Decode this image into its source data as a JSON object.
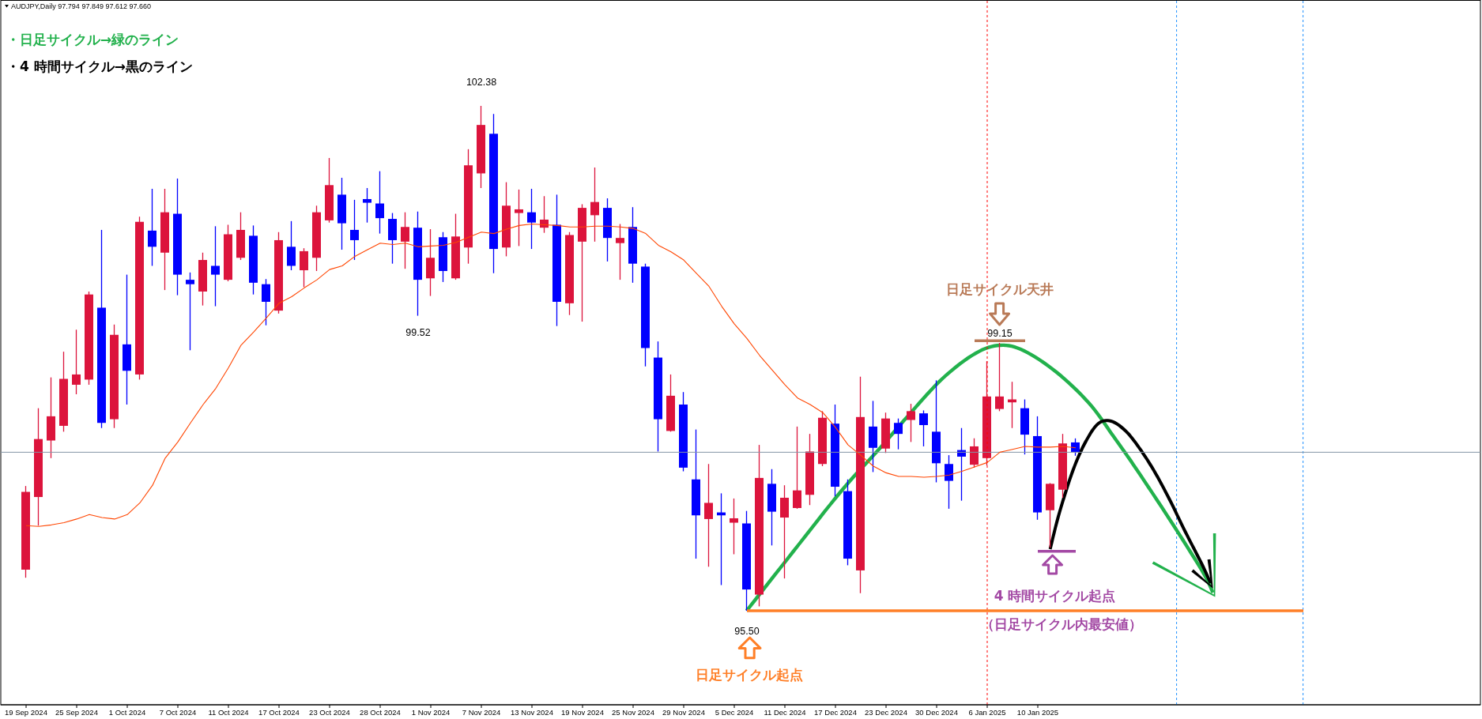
{
  "chart_data": {
    "type": "candlestick",
    "title": "AUDJPY,Daily 97.794 97.849 97.612 97.660",
    "categories": [
      "19 Sep 2024",
      null,
      null,
      null,
      "25 Sep 2024",
      null,
      null,
      null,
      "1 Oct 2024",
      null,
      null,
      null,
      "7 Oct 2024",
      null,
      null,
      null,
      "11 Oct 2024",
      null,
      null,
      null,
      "17 Oct 2024",
      null,
      null,
      null,
      "23 Oct 2024",
      null,
      null,
      null,
      "28 Oct 2024",
      null,
      null,
      null,
      "1 Nov 2024",
      null,
      null,
      null,
      "7 Nov 2024",
      null,
      null,
      null,
      "13 Nov 2024",
      null,
      null,
      null,
      "19 Nov 2024",
      null,
      null,
      null,
      "25 Nov 2024",
      null,
      null,
      null,
      "29 Nov 2024",
      null,
      null,
      null,
      "5 Dec 2024",
      null,
      null,
      null,
      "11 Dec 2024",
      null,
      null,
      null,
      "17 Dec 2024",
      null,
      null,
      null,
      "23 Dec 2024",
      null,
      null,
      null,
      "30 Dec 2024",
      null,
      null,
      null,
      "6 Jan 2025",
      null,
      null,
      null,
      "10 Jan 2025",
      null,
      null,
      null,
      null,
      null,
      null,
      null,
      null,
      null,
      null,
      null,
      null,
      null,
      null,
      null,
      null,
      null,
      null,
      null,
      null,
      null
    ],
    "ohlc": [
      [
        96.06,
        97.2,
        95.95,
        97.12
      ],
      [
        97.05,
        98.26,
        96.66,
        97.84
      ],
      [
        97.82,
        98.68,
        97.58,
        98.15
      ],
      [
        98.02,
        99.03,
        97.94,
        98.66
      ],
      [
        98.58,
        99.33,
        98.45,
        98.72
      ],
      [
        98.65,
        99.85,
        98.58,
        99.81
      ],
      [
        99.63,
        100.69,
        97.99,
        98.06
      ],
      [
        98.11,
        99.4,
        97.99,
        99.26
      ],
      [
        99.13,
        100.08,
        98.31,
        98.77
      ],
      [
        98.72,
        100.87,
        98.65,
        100.8
      ],
      [
        100.68,
        101.25,
        100.2,
        100.46
      ],
      [
        100.38,
        101.25,
        99.87,
        100.93
      ],
      [
        100.91,
        101.39,
        99.8,
        100.08
      ],
      [
        100.01,
        100.11,
        99.05,
        99.95
      ],
      [
        99.85,
        100.38,
        99.66,
        100.28
      ],
      [
        100.2,
        100.74,
        99.65,
        100.08
      ],
      [
        100.01,
        100.76,
        99.99,
        100.63
      ],
      [
        100.31,
        100.93,
        100.28,
        100.69
      ],
      [
        100.61,
        100.75,
        99.81,
        99.97
      ],
      [
        99.95,
        100.02,
        99.39,
        99.71
      ],
      [
        99.59,
        100.66,
        99.55,
        100.55
      ],
      [
        100.46,
        100.81,
        100.14,
        100.2
      ],
      [
        100.14,
        100.44,
        99.91,
        100.4
      ],
      [
        100.31,
        101.02,
        100.13,
        100.93
      ],
      [
        100.82,
        101.67,
        100.79,
        101.3
      ],
      [
        101.17,
        101.4,
        100.42,
        100.78
      ],
      [
        100.69,
        101.1,
        100.28,
        100.55
      ],
      [
        101.11,
        101.26,
        100.79,
        101.06
      ],
      [
        101.05,
        101.49,
        100.64,
        100.85
      ],
      [
        100.84,
        100.92,
        100.23,
        100.55
      ],
      [
        100.53,
        100.93,
        100.16,
        100.73
      ],
      [
        100.72,
        100.94,
        99.52,
        100.01
      ],
      [
        100.03,
        100.7,
        99.79,
        100.31
      ],
      [
        100.59,
        100.66,
        99.98,
        100.13
      ],
      [
        100.03,
        100.91,
        100.01,
        100.6
      ],
      [
        100.45,
        101.79,
        100.23,
        101.57
      ],
      [
        101.46,
        102.38,
        101.26,
        102.12
      ],
      [
        102.0,
        102.27,
        100.1,
        100.43
      ],
      [
        100.45,
        101.34,
        100.33,
        101.02
      ],
      [
        100.92,
        101.24,
        100.47,
        100.97
      ],
      [
        100.93,
        101.25,
        100.43,
        100.79
      ],
      [
        100.72,
        101.15,
        100.65,
        100.83
      ],
      [
        100.76,
        101.17,
        99.38,
        99.71
      ],
      [
        99.69,
        100.66,
        99.53,
        100.62
      ],
      [
        100.53,
        101.04,
        99.44,
        100.99
      ],
      [
        100.89,
        101.54,
        100.53,
        101.07
      ],
      [
        100.99,
        101.12,
        100.26,
        100.58
      ],
      [
        100.51,
        100.77,
        100.01,
        100.58
      ],
      [
        100.73,
        101.0,
        99.97,
        100.23
      ],
      [
        100.19,
        100.23,
        98.83,
        99.08
      ],
      [
        98.95,
        99.17,
        97.67,
        98.11
      ],
      [
        97.95,
        98.72,
        97.94,
        98.43
      ],
      [
        98.31,
        98.48,
        97.4,
        97.45
      ],
      [
        97.29,
        97.97,
        96.21,
        96.8
      ],
      [
        96.75,
        97.5,
        96.1,
        96.97
      ],
      [
        96.84,
        97.1,
        95.85,
        96.8
      ],
      [
        96.7,
        97.03,
        96.27,
        96.76
      ],
      [
        96.69,
        96.86,
        95.5,
        95.79
      ],
      [
        95.72,
        97.76,
        95.56,
        97.31
      ],
      [
        97.23,
        97.43,
        96.39,
        96.85
      ],
      [
        96.77,
        97.21,
        95.94,
        97.04
      ],
      [
        96.9,
        98.01,
        96.89,
        97.14
      ],
      [
        97.08,
        97.91,
        96.94,
        97.67
      ],
      [
        97.5,
        98.22,
        97.47,
        98.13
      ],
      [
        98.05,
        98.31,
        97.06,
        97.19
      ],
      [
        97.13,
        97.29,
        96.12,
        96.21
      ],
      [
        96.05,
        98.69,
        95.74,
        98.14
      ],
      [
        98.01,
        98.36,
        97.39,
        97.72
      ],
      [
        97.71,
        98.2,
        97.65,
        98.12
      ],
      [
        98.06,
        98.12,
        97.7,
        97.91
      ],
      [
        98.1,
        98.32,
        97.8,
        98.22
      ],
      [
        98.19,
        98.23,
        97.74,
        98.03
      ],
      [
        97.94,
        98.64,
        97.25,
        97.51
      ],
      [
        97.5,
        97.62,
        96.89,
        97.27
      ],
      [
        97.69,
        97.99,
        97.0,
        97.6
      ],
      [
        97.49,
        97.85,
        97.45,
        97.74
      ],
      [
        97.58,
        98.9,
        97.48,
        98.42
      ],
      [
        98.25,
        99.15,
        98.22,
        98.42
      ],
      [
        98.34,
        98.62,
        97.99,
        98.38
      ],
      [
        98.26,
        98.38,
        97.63,
        97.9
      ],
      [
        97.88,
        98.15,
        96.74,
        96.84
      ],
      [
        96.87,
        97.24,
        96.36,
        97.23
      ],
      [
        97.15,
        97.91,
        97.04,
        97.78
      ],
      [
        97.794,
        97.849,
        97.612,
        97.66
      ],
      null,
      null,
      null,
      null,
      null,
      null,
      null,
      null,
      null,
      null,
      null,
      null,
      null,
      null,
      null,
      null,
      null,
      null
    ],
    "colors": [
      "#dc143c",
      "#dc143c",
      "#dc143c",
      "#dc143c",
      "#dc143c",
      "#dc143c",
      "#0000ff",
      "#dc143c",
      "#0000ff",
      "#dc143c",
      "#0000ff",
      "#dc143c",
      "#0000ff",
      "#0000ff",
      "#dc143c",
      "#0000ff",
      "#dc143c",
      "#dc143c",
      "#0000ff",
      "#0000ff",
      "#dc143c",
      "#0000ff",
      "#dc143c",
      "#dc143c",
      "#dc143c",
      "#0000ff",
      "#0000ff",
      "#0000ff",
      "#0000ff",
      "#0000ff",
      "#dc143c",
      "#0000ff",
      "#dc143c",
      "#0000ff",
      "#dc143c",
      "#dc143c",
      "#dc143c",
      "#0000ff",
      "#dc143c",
      "#dc143c",
      "#0000ff",
      "#dc143c",
      "#0000ff",
      "#dc143c",
      "#dc143c",
      "#dc143c",
      "#0000ff",
      "#dc143c",
      "#0000ff",
      "#0000ff",
      "#0000ff",
      "#dc143c",
      "#0000ff",
      "#0000ff",
      "#dc143c",
      "#0000ff",
      "#dc143c",
      "#0000ff",
      "#dc143c",
      "#0000ff",
      "#dc143c",
      "#dc143c",
      "#dc143c",
      "#dc143c",
      "#0000ff",
      "#0000ff",
      "#dc143c",
      "#0000ff",
      "#dc143c",
      "#0000ff",
      "#dc143c",
      "#0000ff",
      "#0000ff",
      "#0000ff",
      "#0000ff",
      "#dc143c",
      "#dc143c",
      "#dc143c",
      "#dc143c",
      "#0000ff",
      "#0000ff",
      "#dc143c",
      "#dc143c",
      "#0000ff",
      null,
      null,
      null,
      null,
      null,
      null,
      null,
      null,
      null,
      null,
      null,
      null,
      null,
      null,
      null,
      null,
      null,
      null
    ],
    "series": [
      {
        "type": "line",
        "color": "#ff4500",
        "values": [
          96.66,
          96.65,
          96.67,
          96.7,
          96.75,
          96.81,
          96.77,
          96.75,
          96.81,
          96.97,
          97.21,
          97.58,
          97.8,
          98.06,
          98.31,
          98.53,
          98.81,
          99.12,
          99.3,
          99.49,
          99.69,
          99.78,
          99.9,
          100.01,
          100.15,
          100.2,
          100.33,
          100.42,
          100.51,
          100.49,
          100.51,
          100.46,
          100.47,
          100.48,
          100.52,
          100.59,
          100.66,
          100.64,
          100.7,
          100.75,
          100.77,
          100.76,
          100.75,
          100.73,
          100.73,
          100.74,
          100.74,
          100.73,
          100.71,
          100.64,
          100.48,
          100.39,
          100.28,
          100.1,
          99.92,
          99.65,
          99.41,
          99.21,
          98.98,
          98.78,
          98.58,
          98.4,
          98.31,
          98.2,
          98.0,
          97.76,
          97.62,
          97.47,
          97.38,
          97.33,
          97.33,
          97.32,
          97.33,
          97.35,
          97.4,
          97.46,
          97.52,
          97.66,
          97.7,
          97.74,
          97.73,
          97.73,
          97.74,
          97.72,
          null,
          null,
          null,
          null,
          null,
          null,
          null,
          null,
          null,
          null,
          null,
          null,
          null,
          null,
          null,
          null,
          null,
          null
        ]
      },
      {
        "type": "line",
        "color": "#ff7f27",
        "values": [
          null,
          null,
          null,
          null,
          null,
          null,
          null,
          null,
          null,
          null,
          null,
          null,
          null,
          null,
          null,
          null,
          null,
          null,
          null,
          null,
          null,
          null,
          null,
          null,
          null,
          null,
          null,
          null,
          null,
          null,
          null,
          null,
          null,
          null,
          null,
          null,
          null,
          null,
          null,
          null,
          null,
          null,
          null,
          null,
          null,
          null,
          null,
          null,
          null,
          null,
          null,
          null,
          null,
          null,
          null,
          null,
          null,
          95.5,
          95.5,
          95.5,
          95.5,
          95.5,
          95.5,
          95.5,
          95.5,
          95.5,
          95.5,
          95.5,
          95.5,
          95.5,
          95.5,
          95.5,
          95.5,
          95.5,
          95.5,
          95.5,
          95.5,
          95.5,
          95.5,
          95.5,
          95.5,
          95.5,
          95.5,
          95.5,
          95.5,
          95.5,
          95.5,
          95.5,
          95.5,
          95.5,
          95.5,
          95.5,
          95.5,
          95.5,
          95.5,
          95.5,
          95.5,
          95.5,
          95.5,
          95.5,
          95.5,
          95.5
        ]
      },
      {
        "type": "line",
        "color": "#b97a57",
        "values": [
          null,
          null,
          null,
          null,
          null,
          null,
          null,
          null,
          null,
          null,
          null,
          null,
          null,
          null,
          null,
          null,
          null,
          null,
          null,
          null,
          null,
          null,
          null,
          null,
          null,
          null,
          null,
          null,
          null,
          null,
          null,
          null,
          null,
          null,
          null,
          null,
          null,
          null,
          null,
          null,
          null,
          null,
          null,
          null,
          null,
          null,
          null,
          null,
          null,
          null,
          null,
          null,
          null,
          null,
          null,
          null,
          null,
          null,
          null,
          null,
          null,
          null,
          null,
          null,
          null,
          null,
          null,
          null,
          null,
          null,
          null,
          null,
          null,
          null,
          null,
          99.18,
          99.18,
          99.18,
          99.18,
          99.18,
          null,
          null,
          null,
          null,
          null,
          null,
          null,
          null,
          null,
          null,
          null,
          null,
          null,
          null,
          null,
          null,
          null,
          null,
          null,
          null,
          null,
          null
        ]
      },
      {
        "type": "line",
        "color": "#a349a4",
        "values": [
          null,
          null,
          null,
          null,
          null,
          null,
          null,
          null,
          null,
          null,
          null,
          null,
          null,
          null,
          null,
          null,
          null,
          null,
          null,
          null,
          null,
          null,
          null,
          null,
          null,
          null,
          null,
          null,
          null,
          null,
          null,
          null,
          null,
          null,
          null,
          null,
          null,
          null,
          null,
          null,
          null,
          null,
          null,
          null,
          null,
          null,
          null,
          null,
          null,
          null,
          null,
          null,
          null,
          null,
          null,
          null,
          null,
          null,
          null,
          null,
          null,
          null,
          null,
          null,
          null,
          null,
          null,
          null,
          null,
          null,
          null,
          null,
          null,
          null,
          null,
          null,
          null,
          null,
          null,
          null,
          96.31,
          96.31,
          96.31,
          96.31,
          null,
          null,
          null,
          null,
          null,
          null,
          null,
          null,
          null,
          null,
          null,
          null,
          null,
          null,
          null,
          null,
          null,
          null
        ]
      }
    ],
    "ref_lines": [
      {
        "axis": "x",
        "value": "6 Jan 2025",
        "color": "#ff0000",
        "line_style": "dotted"
      },
      {
        "axis": "y",
        "value": 97.66,
        "color": "#8595a5",
        "line_style": "solid"
      }
    ],
    "annotations": [
      "・日足サイクル→緑のライン",
      "・4 時間サイクル→黒のライン",
      {
        "text": "102.38",
        "x": "7 Nov 2024",
        "y": 102.38
      },
      {
        "text": "99.52",
        "y": 99.52
      },
      {
        "text": "99.15",
        "y": 99.15
      },
      {
        "text": "95.50",
        "y": 95.5
      },
      "日足サイクル天井",
      "4 時間サイクル起点",
      "（日足サイクル内最安値）",
      "日足サイクル起点"
    ]
  }
}
